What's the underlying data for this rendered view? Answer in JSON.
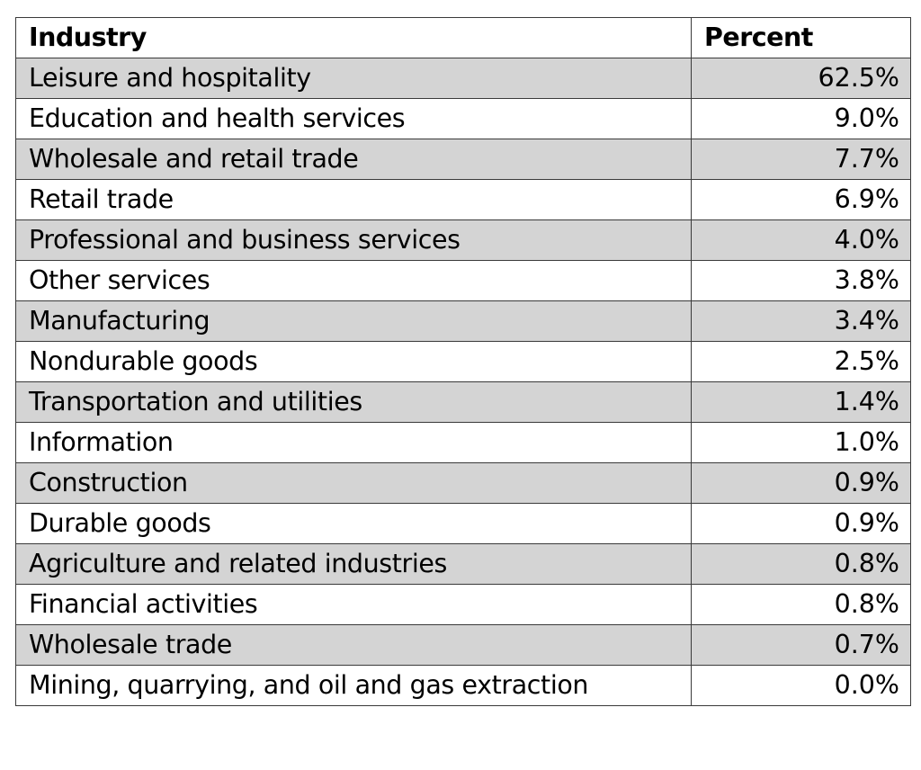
{
  "chart_data": {
    "type": "table",
    "columns": [
      "Industry",
      "Percent"
    ],
    "rows": [
      {
        "industry": "Leisure and hospitality",
        "percent": "62.5%"
      },
      {
        "industry": "Education and health services",
        "percent": "9.0%"
      },
      {
        "industry": "Wholesale and retail trade",
        "percent": "7.7%"
      },
      {
        "industry": "Retail trade",
        "percent": "6.9%"
      },
      {
        "industry": "Professional and business services",
        "percent": "4.0%"
      },
      {
        "industry": "Other services",
        "percent": "3.8%"
      },
      {
        "industry": "Manufacturing",
        "percent": "3.4%"
      },
      {
        "industry": "Nondurable goods",
        "percent": "2.5%"
      },
      {
        "industry": "Transportation and utilities",
        "percent": "1.4%"
      },
      {
        "industry": "Information",
        "percent": "1.0%"
      },
      {
        "industry": "Construction",
        "percent": "0.9%"
      },
      {
        "industry": "Durable goods",
        "percent": "0.9%"
      },
      {
        "industry": "Agriculture and related industries",
        "percent": "0.8%"
      },
      {
        "industry": "Financial activities",
        "percent": "0.8%"
      },
      {
        "industry": "Wholesale trade",
        "percent": "0.7%"
      },
      {
        "industry": "Mining, quarrying, and oil and gas extraction",
        "percent": "0.0%"
      }
    ],
    "row_shading": "alternating",
    "shade_color": "#d4d4d4",
    "border_color": "#3a3a3a"
  }
}
